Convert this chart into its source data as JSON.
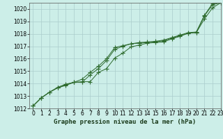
{
  "title": "Graphe pression niveau de la mer (hPa)",
  "background_color": "#cceee8",
  "grid_color": "#aacccc",
  "line_color": "#2d6a2d",
  "marker_color": "#2d6a2d",
  "xlim": [
    -0.5,
    23
  ],
  "ylim": [
    1012,
    1020.5
  ],
  "xticks": [
    0,
    1,
    2,
    3,
    4,
    5,
    6,
    7,
    8,
    9,
    10,
    11,
    12,
    13,
    14,
    15,
    16,
    17,
    18,
    19,
    20,
    21,
    22,
    23
  ],
  "yticks": [
    1012,
    1013,
    1014,
    1015,
    1016,
    1017,
    1018,
    1019,
    1020
  ],
  "series1_x": [
    0,
    1,
    2,
    3,
    4,
    5,
    6,
    7,
    8,
    9,
    10,
    11,
    12,
    13,
    14,
    15,
    16,
    17,
    18,
    19,
    20,
    21,
    22,
    23
  ],
  "series1_y": [
    1012.2,
    1012.85,
    1013.3,
    1013.7,
    1013.95,
    1014.1,
    1014.15,
    1014.15,
    1014.9,
    1015.2,
    1016.05,
    1016.45,
    1016.95,
    1017.1,
    1017.25,
    1017.3,
    1017.35,
    1017.6,
    1017.8,
    1018.05,
    1018.1,
    1019.2,
    1020.1,
    1020.5
  ],
  "series2_x": [
    0,
    1,
    2,
    3,
    4,
    5,
    6,
    7,
    8,
    9,
    10,
    11,
    12,
    13,
    14,
    15,
    16,
    17,
    18,
    19,
    20,
    21,
    22,
    23
  ],
  "series2_y": [
    1012.2,
    1012.85,
    1013.3,
    1013.65,
    1013.9,
    1014.1,
    1014.35,
    1014.9,
    1015.4,
    1016.0,
    1016.9,
    1017.05,
    1017.2,
    1017.25,
    1017.3,
    1017.35,
    1017.45,
    1017.65,
    1017.85,
    1018.05,
    1018.1,
    1019.45,
    1020.35,
    1020.5
  ],
  "series3_x": [
    0,
    1,
    2,
    3,
    4,
    5,
    6,
    7,
    8,
    9,
    10,
    11,
    12,
    13,
    14,
    15,
    16,
    17,
    18,
    19,
    20,
    21,
    22,
    23
  ],
  "series3_y": [
    1012.2,
    1012.85,
    1013.3,
    1013.65,
    1013.85,
    1014.1,
    1014.1,
    1014.7,
    1015.2,
    1015.85,
    1016.75,
    1017.0,
    1017.2,
    1017.3,
    1017.35,
    1017.4,
    1017.5,
    1017.7,
    1017.9,
    1018.1,
    1018.15,
    1019.5,
    1020.45,
    1020.5
  ],
  "tick_fontsize": 5.5,
  "label_fontsize": 6.5
}
